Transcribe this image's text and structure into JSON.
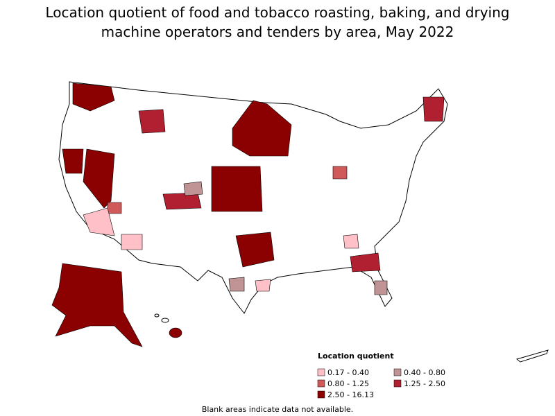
{
  "title": "Location quotient of food and tobacco roasting, baking, and drying machine operators and tenders by area, May 2022",
  "legend": {
    "title": "Location quotient",
    "items": [
      {
        "label": "0.17 - 0.40",
        "color": "#ffc0c8"
      },
      {
        "label": "0.40 - 0.80",
        "color": "#c09494"
      },
      {
        "label": "0.80 - 1.25",
        "color": "#d05a5a"
      },
      {
        "label": "1.25 - 2.50",
        "color": "#b02030"
      },
      {
        "label": "2.50 - 16.13",
        "color": "#8b0000"
      }
    ]
  },
  "footnote": "Blank areas indicate data not available."
}
